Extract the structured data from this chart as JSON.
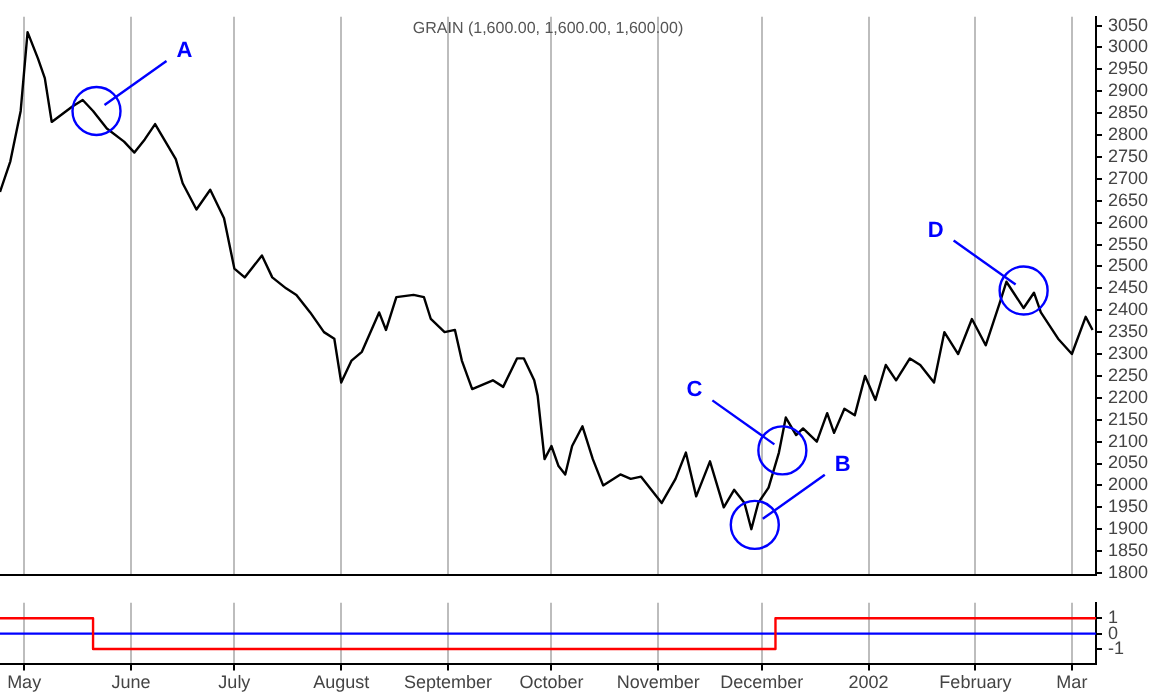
{
  "chart_data": [
    {
      "type": "line",
      "title": "GRAIN (1,600.00, 1,600.00, 1,600.00)",
      "color": "#000000",
      "x": [
        "2001-04-24",
        "2001-04-27",
        "2001-04-30",
        "2001-05-02",
        "2001-05-05",
        "2001-05-07",
        "2001-05-09",
        "2001-05-15",
        "2001-05-18",
        "2001-05-21",
        "2001-05-25",
        "2001-05-30",
        "2001-06-02",
        "2001-06-05",
        "2001-06-08",
        "2001-06-14",
        "2001-06-16",
        "2001-06-20",
        "2001-06-24",
        "2001-06-28",
        "2001-07-01",
        "2001-07-04",
        "2001-07-09",
        "2001-07-12",
        "2001-07-16",
        "2001-07-19",
        "2001-07-23",
        "2001-07-27",
        "2001-07-30",
        "2001-08-01",
        "2001-08-04",
        "2001-08-07",
        "2001-08-12",
        "2001-08-14",
        "2001-08-17",
        "2001-08-22",
        "2001-08-25",
        "2001-08-27",
        "2001-08-31",
        "2001-09-03",
        "2001-09-05",
        "2001-09-08",
        "2001-09-14",
        "2001-09-17",
        "2001-09-21",
        "2001-09-23",
        "2001-09-26",
        "2001-09-27",
        "2001-09-29",
        "2001-10-01",
        "2001-10-03",
        "2001-10-05",
        "2001-10-07",
        "2001-10-10",
        "2001-10-13",
        "2001-10-16",
        "2001-10-21",
        "2001-10-24",
        "2001-10-27",
        "2001-11-02",
        "2001-11-06",
        "2001-11-09",
        "2001-11-12",
        "2001-11-16",
        "2001-11-20",
        "2001-11-23",
        "2001-11-26",
        "2001-11-28",
        "2001-11-30",
        "2001-12-03",
        "2001-12-06",
        "2001-12-08",
        "2001-12-11",
        "2001-12-13",
        "2001-12-17",
        "2001-12-20",
        "2001-12-22",
        "2001-12-25",
        "2001-12-28",
        "2001-12-31",
        "2002-01-03",
        "2002-01-06",
        "2002-01-09",
        "2002-01-13",
        "2002-01-16",
        "2002-01-20",
        "2002-01-23",
        "2002-01-27",
        "2002-01-31",
        "2002-02-04",
        "2002-02-08",
        "2002-02-10",
        "2002-02-15",
        "2002-02-18",
        "2002-02-20",
        "2002-02-25",
        "2002-03-01",
        "2002-03-05",
        "2002-03-07"
      ],
      "values": [
        2670,
        2740,
        2855,
        3035,
        2975,
        2930,
        2830,
        2865,
        2880,
        2855,
        2815,
        2785,
        2760,
        2790,
        2825,
        2745,
        2690,
        2630,
        2675,
        2610,
        2495,
        2475,
        2525,
        2475,
        2450,
        2435,
        2395,
        2350,
        2335,
        2235,
        2285,
        2305,
        2395,
        2355,
        2430,
        2435,
        2430,
        2380,
        2350,
        2355,
        2285,
        2220,
        2240,
        2225,
        2290,
        2290,
        2240,
        2205,
        2060,
        2090,
        2045,
        2025,
        2090,
        2135,
        2060,
        2000,
        2025,
        2015,
        2020,
        1960,
        2015,
        2075,
        1975,
        2055,
        1950,
        1990,
        1960,
        1900,
        1960,
        1995,
        2075,
        2155,
        2115,
        2130,
        2100,
        2165,
        2120,
        2175,
        2160,
        2250,
        2195,
        2275,
        2240,
        2290,
        2275,
        2235,
        2350,
        2300,
        2380,
        2320,
        2415,
        2465,
        2405,
        2440,
        2395,
        2335,
        2300,
        2385,
        2355
      ],
      "xlim": [
        "2001-04-24",
        "2002-03-08"
      ],
      "xticks": [
        {
          "value": "2001-05-01",
          "label": null
        },
        {
          "value": "2001-06-01",
          "label": null
        },
        {
          "value": "2001-07-01",
          "label": null
        },
        {
          "value": "2001-08-01",
          "label": null
        },
        {
          "value": "2001-09-01",
          "label": null
        },
        {
          "value": "2001-10-01",
          "label": null
        },
        {
          "value": "2001-11-01",
          "label": null
        },
        {
          "value": "2001-12-01",
          "label": null
        },
        {
          "value": "2002-01-01",
          "label": null
        },
        {
          "value": "2002-02-01",
          "label": null
        },
        {
          "value": "2002-03-01",
          "label": null
        }
      ],
      "ylim": [
        1795,
        3070
      ],
      "yticks": [
        1800,
        1850,
        1900,
        1950,
        2000,
        2050,
        2100,
        2150,
        2200,
        2250,
        2300,
        2350,
        2400,
        2450,
        2500,
        2550,
        2600,
        2650,
        2700,
        2750,
        2800,
        2850,
        2900,
        2950,
        3000,
        3050
      ],
      "grid": "x",
      "tick_labels": "y",
      "annotations": [
        {
          "text": "A",
          "x": "2001-05-22",
          "y": 2855
        },
        {
          "text": "B",
          "x": "2001-11-29",
          "y": 1910
        },
        {
          "text": "C",
          "x": "2001-12-07",
          "y": 2080
        },
        {
          "text": "D",
          "x": "2002-02-15",
          "y": 2445
        }
      ]
    },
    {
      "type": "step",
      "series": [
        {
          "color": "#ff0000",
          "x": [
            "2001-04-24",
            "2001-05-21",
            "2001-12-05",
            "2002-03-08"
          ],
          "values": [
            1,
            -1,
            1,
            1
          ]
        }
      ],
      "ref_lines": [
        {
          "axis": "y",
          "value": 0,
          "color": "#0000ff"
        }
      ],
      "xlim": [
        "2001-04-24",
        "2002-03-08"
      ],
      "xticks": [
        {
          "value": "2001-05-01",
          "label": "May"
        },
        {
          "value": "2001-06-01",
          "label": "June"
        },
        {
          "value": "2001-07-01",
          "label": "July"
        },
        {
          "value": "2001-08-01",
          "label": "August"
        },
        {
          "value": "2001-09-01",
          "label": "September"
        },
        {
          "value": "2001-10-01",
          "label": "October"
        },
        {
          "value": "2001-11-01",
          "label": "November"
        },
        {
          "value": "2001-12-01",
          "label": "December"
        },
        {
          "value": "2002-01-01",
          "label": "2002"
        },
        {
          "value": "2002-02-01",
          "label": "February"
        },
        {
          "value": "2002-03-01",
          "label": "Mar"
        }
      ],
      "ylim": [
        -2,
        2
      ],
      "yticks": [
        -1,
        0,
        1
      ],
      "grid": "x"
    }
  ]
}
